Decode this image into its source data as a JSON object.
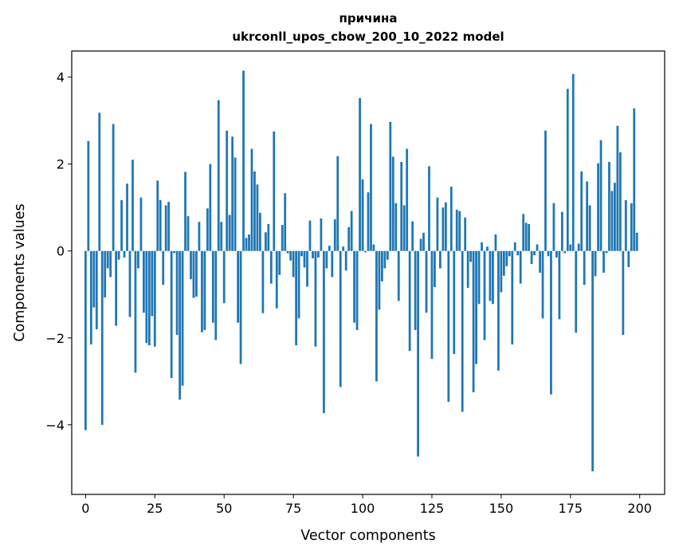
{
  "chart_data": {
    "type": "bar",
    "title": "причина",
    "subtitle": "ukrconll_upos_cbow_200_10_2022 model",
    "xlabel": "Vector components",
    "ylabel": "Components values",
    "xlim": [
      -5,
      209
    ],
    "ylim": [
      -5.6,
      4.6
    ],
    "xticks": [
      0,
      25,
      50,
      75,
      100,
      125,
      150,
      175,
      200
    ],
    "yticks": [
      -4,
      -2,
      0,
      2,
      4
    ],
    "grid": false,
    "bar_color": "#1f77b4",
    "x": [
      0,
      1,
      2,
      3,
      4,
      5,
      6,
      7,
      8,
      9,
      10,
      11,
      12,
      13,
      14,
      15,
      16,
      17,
      18,
      19,
      20,
      21,
      22,
      23,
      24,
      25,
      26,
      27,
      28,
      29,
      30,
      31,
      32,
      33,
      34,
      35,
      36,
      37,
      38,
      39,
      40,
      41,
      42,
      43,
      44,
      45,
      46,
      47,
      48,
      49,
      50,
      51,
      52,
      53,
      54,
      55,
      56,
      57,
      58,
      59,
      60,
      61,
      62,
      63,
      64,
      65,
      66,
      67,
      68,
      69,
      70,
      71,
      72,
      73,
      74,
      75,
      76,
      77,
      78,
      79,
      80,
      81,
      82,
      83,
      84,
      85,
      86,
      87,
      88,
      89,
      90,
      91,
      92,
      93,
      94,
      95,
      96,
      97,
      98,
      99,
      100,
      101,
      102,
      103,
      104,
      105,
      106,
      107,
      108,
      109,
      110,
      111,
      112,
      113,
      114,
      115,
      116,
      117,
      118,
      119,
      120,
      121,
      122,
      123,
      124,
      125,
      126,
      127,
      128,
      129,
      130,
      131,
      132,
      133,
      134,
      135,
      136,
      137,
      138,
      139,
      140,
      141,
      142,
      143,
      144,
      145,
      146,
      147,
      148,
      149,
      150,
      151,
      152,
      153,
      154,
      155,
      156,
      157,
      158,
      159,
      160,
      161,
      162,
      163,
      164,
      165,
      166,
      167,
      168,
      169,
      170,
      171,
      172,
      173,
      174,
      175,
      176,
      177,
      178,
      179,
      180,
      181,
      182,
      183,
      184,
      185,
      186,
      187,
      188,
      189,
      190,
      191,
      192,
      193,
      194,
      195,
      196,
      197,
      198,
      199
    ],
    "values": [
      -4.12,
      2.53,
      -2.15,
      -1.3,
      -1.8,
      3.18,
      -4.0,
      -1.07,
      -0.4,
      -0.6,
      2.92,
      -1.72,
      -0.2,
      1.17,
      -0.15,
      1.55,
      -1.52,
      2.1,
      -2.8,
      -0.4,
      1.23,
      -1.42,
      -2.12,
      -2.17,
      -1.5,
      -2.2,
      1.62,
      1.17,
      -0.78,
      1.05,
      1.13,
      -2.92,
      -0.05,
      -1.93,
      -3.42,
      -3.1,
      1.82,
      0.8,
      -0.65,
      -1.08,
      -1.05,
      0.67,
      -1.87,
      -1.82,
      0.98,
      2.0,
      -1.65,
      -2.05,
      3.47,
      0.67,
      -1.2,
      2.77,
      0.83,
      2.63,
      2.15,
      -1.65,
      -2.6,
      4.15,
      0.3,
      0.38,
      2.35,
      1.83,
      1.53,
      0.88,
      -1.43,
      0.43,
      0.62,
      -0.75,
      2.75,
      -1.32,
      -0.55,
      0.6,
      1.33,
      -0.05,
      -0.22,
      -0.6,
      -2.17,
      -1.55,
      -0.12,
      -0.38,
      -0.82,
      0.7,
      -0.17,
      -2.2,
      -0.15,
      0.75,
      -3.73,
      -0.4,
      0.12,
      -0.6,
      0.73,
      2.18,
      -3.13,
      0.1,
      -0.45,
      0.55,
      0.92,
      -1.65,
      -1.82,
      3.52,
      1.65,
      -0.03,
      1.35,
      2.92,
      0.15,
      -3.0,
      -1.35,
      -0.7,
      -0.4,
      -0.2,
      2.97,
      2.17,
      1.1,
      -1.15,
      2.05,
      1.05,
      2.35,
      -2.3,
      0.68,
      -1.82,
      -4.73,
      0.28,
      0.42,
      -1.42,
      1.95,
      -2.48,
      -0.83,
      1.23,
      -0.4,
      1.0,
      1.12,
      -3.47,
      1.48,
      -2.37,
      0.95,
      0.92,
      -3.7,
      0.77,
      -0.85,
      -0.25,
      -3.25,
      -2.6,
      -1.22,
      0.2,
      -2.05,
      0.1,
      -1.15,
      -1.22,
      0.38,
      -2.75,
      -0.95,
      -0.57,
      -0.35,
      -0.12,
      -2.15,
      0.2,
      -0.1,
      -0.75,
      0.85,
      0.65,
      0.62,
      -0.3,
      -0.1,
      0.15,
      -0.5,
      -1.55,
      2.77,
      -0.12,
      -3.3,
      1.1,
      -0.15,
      -1.57,
      0.9,
      -0.05,
      3.73,
      0.15,
      4.07,
      -1.88,
      0.17,
      1.83,
      -0.78,
      1.6,
      1.05,
      -5.07,
      -0.58,
      2.02,
      2.55,
      -0.5,
      -0.05,
      2.05,
      1.38,
      1.57,
      2.88,
      2.27,
      -1.93,
      1.17,
      -0.37,
      1.1,
      3.28,
      0.42
    ]
  }
}
